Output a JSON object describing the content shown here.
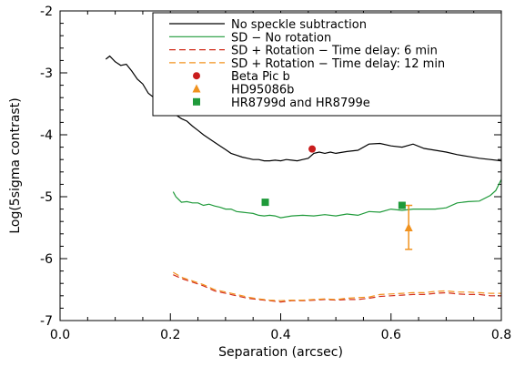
{
  "chart_data": {
    "type": "line",
    "xlabel": "Separation (arcsec)",
    "ylabel": "Log(5sigma contrast)",
    "xlim": [
      0.0,
      0.8
    ],
    "ylim": [
      -7,
      -2
    ],
    "x_ticks": [
      0.0,
      0.2,
      0.4,
      0.6,
      0.8
    ],
    "x_tick_labels": [
      "0.0",
      "0.2",
      "0.4",
      "0.6",
      "0.8"
    ],
    "y_ticks": [
      -7,
      -6,
      -5,
      -4,
      -3,
      -2
    ],
    "y_tick_labels": [
      "-7",
      "-6",
      "-5",
      "-4",
      "-3",
      "-2"
    ],
    "legend_position": "top-right",
    "series": [
      {
        "name": "No speckle subtraction",
        "color": "#000000",
        "dash": "solid",
        "x": [
          0.083,
          0.09,
          0.1,
          0.11,
          0.12,
          0.13,
          0.14,
          0.15,
          0.16,
          0.17,
          0.18,
          0.19,
          0.2,
          0.21,
          0.22,
          0.23,
          0.24,
          0.25,
          0.26,
          0.27,
          0.28,
          0.29,
          0.3,
          0.31,
          0.32,
          0.33,
          0.34,
          0.35,
          0.36,
          0.37,
          0.38,
          0.39,
          0.4,
          0.41,
          0.42,
          0.43,
          0.44,
          0.45,
          0.46,
          0.47,
          0.48,
          0.49,
          0.5,
          0.52,
          0.54,
          0.56,
          0.58,
          0.6,
          0.62,
          0.64,
          0.66,
          0.68,
          0.7,
          0.72,
          0.74,
          0.76,
          0.78,
          0.8
        ],
        "y": [
          -2.78,
          -2.73,
          -2.82,
          -2.88,
          -2.86,
          -2.97,
          -3.1,
          -3.18,
          -3.33,
          -3.4,
          -3.48,
          -3.56,
          -3.62,
          -3.68,
          -3.74,
          -3.78,
          -3.86,
          -3.93,
          -4.0,
          -4.06,
          -4.12,
          -4.18,
          -4.24,
          -4.3,
          -4.33,
          -4.36,
          -4.38,
          -4.4,
          -4.4,
          -4.42,
          -4.42,
          -4.41,
          -4.42,
          -4.4,
          -4.41,
          -4.42,
          -4.4,
          -4.38,
          -4.3,
          -4.28,
          -4.3,
          -4.28,
          -4.3,
          -4.27,
          -4.25,
          -4.15,
          -4.14,
          -4.18,
          -4.2,
          -4.15,
          -4.22,
          -4.25,
          -4.28,
          -4.32,
          -4.35,
          -4.38,
          -4.4,
          -4.42
        ]
      },
      {
        "name": "SD − No rotation",
        "color": "#1f9a3a",
        "dash": "solid",
        "x": [
          0.205,
          0.21,
          0.22,
          0.23,
          0.24,
          0.25,
          0.26,
          0.27,
          0.28,
          0.29,
          0.3,
          0.31,
          0.32,
          0.33,
          0.34,
          0.35,
          0.36,
          0.37,
          0.38,
          0.39,
          0.4,
          0.42,
          0.44,
          0.46,
          0.48,
          0.5,
          0.52,
          0.54,
          0.56,
          0.58,
          0.6,
          0.62,
          0.64,
          0.66,
          0.68,
          0.7,
          0.72,
          0.74,
          0.76,
          0.78,
          0.79,
          0.8
        ],
        "y": [
          -4.92,
          -5.0,
          -5.09,
          -5.08,
          -5.1,
          -5.1,
          -5.14,
          -5.12,
          -5.15,
          -5.17,
          -5.2,
          -5.2,
          -5.24,
          -5.25,
          -5.26,
          -5.27,
          -5.3,
          -5.31,
          -5.3,
          -5.31,
          -5.34,
          -5.31,
          -5.3,
          -5.31,
          -5.29,
          -5.31,
          -5.28,
          -5.3,
          -5.24,
          -5.25,
          -5.2,
          -5.22,
          -5.2,
          -5.2,
          -5.2,
          -5.18,
          -5.1,
          -5.08,
          -5.07,
          -4.98,
          -4.9,
          -4.72
        ]
      },
      {
        "name": "SD + Rotation − Time delay: 6 min",
        "color": "#d32f1e",
        "dash": "dashed",
        "x": [
          0.205,
          0.22,
          0.24,
          0.26,
          0.28,
          0.3,
          0.32,
          0.34,
          0.36,
          0.38,
          0.4,
          0.42,
          0.44,
          0.46,
          0.48,
          0.5,
          0.52,
          0.54,
          0.56,
          0.58,
          0.6,
          0.62,
          0.64,
          0.66,
          0.68,
          0.7,
          0.72,
          0.74,
          0.76,
          0.78,
          0.8
        ],
        "y": [
          -6.26,
          -6.32,
          -6.38,
          -6.44,
          -6.52,
          -6.56,
          -6.6,
          -6.64,
          -6.66,
          -6.68,
          -6.7,
          -6.68,
          -6.68,
          -6.67,
          -6.66,
          -6.67,
          -6.66,
          -6.66,
          -6.64,
          -6.61,
          -6.6,
          -6.59,
          -6.58,
          -6.58,
          -6.56,
          -6.55,
          -6.57,
          -6.58,
          -6.58,
          -6.6,
          -6.6
        ]
      },
      {
        "name": "SD + Rotation − Time delay: 12 min",
        "color": "#f0921e",
        "dash": "dashed",
        "x": [
          0.205,
          0.22,
          0.24,
          0.26,
          0.28,
          0.3,
          0.32,
          0.34,
          0.36,
          0.38,
          0.4,
          0.42,
          0.44,
          0.46,
          0.48,
          0.5,
          0.52,
          0.54,
          0.56,
          0.58,
          0.6,
          0.62,
          0.64,
          0.66,
          0.68,
          0.7,
          0.72,
          0.74,
          0.76,
          0.78,
          0.8
        ],
        "y": [
          -6.22,
          -6.3,
          -6.36,
          -6.42,
          -6.5,
          -6.54,
          -6.58,
          -6.62,
          -6.65,
          -6.67,
          -6.68,
          -6.67,
          -6.67,
          -6.66,
          -6.65,
          -6.66,
          -6.64,
          -6.63,
          -6.62,
          -6.58,
          -6.57,
          -6.56,
          -6.55,
          -6.55,
          -6.53,
          -6.52,
          -6.54,
          -6.54,
          -6.55,
          -6.56,
          -6.56
        ]
      }
    ],
    "points": [
      {
        "name": "Beta Pic b",
        "marker": "circle",
        "color": "#c91d1d",
        "x": 0.457,
        "y": -4.23
      },
      {
        "name": "HD95086b",
        "marker": "triangle",
        "color": "#f0921e",
        "x": 0.632,
        "y": -5.5,
        "yerr_low": -5.85,
        "yerr_high": -5.14
      },
      {
        "name": "HR8799d and HR8799e",
        "marker": "square",
        "color": "#1f9a3a",
        "x": [
          0.372,
          0.62
        ],
        "y": [
          -5.09,
          -5.14
        ]
      }
    ]
  }
}
